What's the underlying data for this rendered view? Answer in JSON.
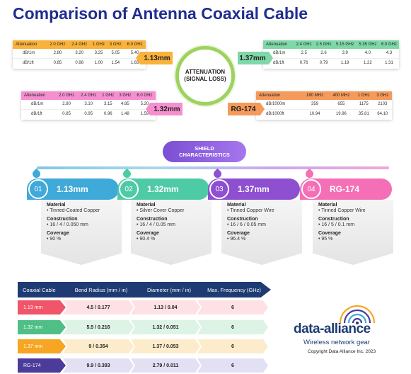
{
  "title": "Comparison of Antenna Coaxial Cable",
  "attenuation": {
    "center_label_line1": "ATTENUATION",
    "center_label_line2": "(SIGNAL LOSS)",
    "tables": [
      {
        "cable": "1.13mm",
        "color": "#f9b23a",
        "headers": [
          "Attenuation",
          "2.0 GHz",
          "2.4 GHz",
          "1 GHz",
          "3 GHz",
          "6.0 GHz"
        ],
        "rows": [
          [
            "dB/1m",
            "2.80",
            "3.20",
            "3.25",
            "5.05",
            "5.40"
          ],
          [
            "dB/1ft",
            "0.85",
            "0.98",
            "1.00",
            "1.54",
            "1.65"
          ]
        ]
      },
      {
        "cable": "1.37mm",
        "color": "#7fd8a8",
        "headers": [
          "Attenuation",
          "2.4 GHz",
          "2.5 GHz",
          "5.15 GHz",
          "5.35 GHz",
          "6.0 GHz"
        ],
        "rows": [
          [
            "dB/1m",
            "2.5",
            "2.6",
            "3.9",
            "4.0",
            "4.3"
          ],
          [
            "dB/1ft",
            "0.76",
            "0.79",
            "1.19",
            "1.22",
            "1.31"
          ]
        ]
      },
      {
        "cable": "1.32mm",
        "color": "#f58fcf",
        "headers": [
          "Attenuation",
          "2.0 GHz",
          "2.4 GHz",
          "1 GHz",
          "3 GHz",
          "6.0 GHz"
        ],
        "rows": [
          [
            "dB/1m",
            "2.80",
            "3.10",
            "3.15",
            "4.85",
            "5.20"
          ],
          [
            "dB/1ft",
            "0.85",
            "0.95",
            "0.96",
            "1.48",
            "1.59"
          ]
        ]
      },
      {
        "cable": "RG-174",
        "color": "#f59a5a",
        "headers": [
          "Attenuation",
          "180 MHz",
          "400 MHz",
          "1 GHz",
          "3 GHz"
        ],
        "rows": [
          [
            "dB/1000m",
            "359",
            "655",
            "1175",
            "2103"
          ],
          [
            "dB/1000ft",
            "10.94",
            "19.96",
            "35.81",
            "64.10"
          ]
        ]
      }
    ]
  },
  "shield": {
    "label_line1": "SHIELD",
    "label_line2": "CHARACTERISTICS",
    "cards": [
      {
        "num": "01",
        "name": "1.13mm",
        "color": "#3fa9d9",
        "k1": "Material",
        "material": "• Tinned-Coated Copper",
        "k2": "Construction",
        "construction": "• 16 / 4 / 0.050 mm",
        "k3": "Coverage",
        "coverage": "• 90 %"
      },
      {
        "num": "02",
        "name": "1.32mm",
        "color": "#4ecba6",
        "k1": "Material",
        "material": "• Silver Cover Copper",
        "k2": "Construction",
        "construction": "• 16 / 4 / 0.05 mm",
        "k3": "Coverage",
        "coverage": "• 90.4 %"
      },
      {
        "num": "03",
        "name": "1.37mm",
        "color": "#8e4fd1",
        "k1": "Material",
        "material": "• Tinned Copper Wire",
        "k2": "Construction",
        "construction": "• 16 / 6 / 0.05 mm",
        "k3": "Coverage",
        "coverage": "• 96.4 %"
      },
      {
        "num": "04",
        "name": "RG-174",
        "color": "#f56fb7",
        "k1": "Material",
        "material": "• Tinned Copper Wire",
        "k2": "Construction",
        "construction": "• 16 / 5 / 0.1 mm",
        "k3": "Coverage",
        "coverage": "• 95 %"
      }
    ]
  },
  "spec_table": {
    "headers": [
      "Coaxial Cable",
      "Bend Radius (mm / in)",
      "Diameter (mm / in)",
      "Max. Frequency (GHz)"
    ],
    "rows": [
      {
        "name": "1.13 mm",
        "color": "#f0556a",
        "tint": "#fde1e4",
        "bend": "4.5 / 0.177",
        "diameter": "1.13 / 0.04",
        "freq": "6"
      },
      {
        "name": "1.32 mm",
        "color": "#4fbf86",
        "tint": "#dcf3e6",
        "bend": "5.5 / 0.216",
        "diameter": "1.32 / 0.051",
        "freq": "6"
      },
      {
        "name": "1.37 mm",
        "color": "#f6a623",
        "tint": "#fdeccc",
        "bend": "9 / 0.354",
        "diameter": "1.37 / 0.053",
        "freq": "6"
      },
      {
        "name": "RG-174",
        "color": "#4b3b9a",
        "tint": "#e4e0f4",
        "bend": "9.9 / 0.393",
        "diameter": "2.79 / 0.011",
        "freq": "6"
      }
    ]
  },
  "logo": {
    "name": "data-alliance",
    "tagline": "Wireless network gear",
    "copyright": "Copyright Data Alliance Inc. 2023",
    "icon": "antenna-dish-icon"
  }
}
